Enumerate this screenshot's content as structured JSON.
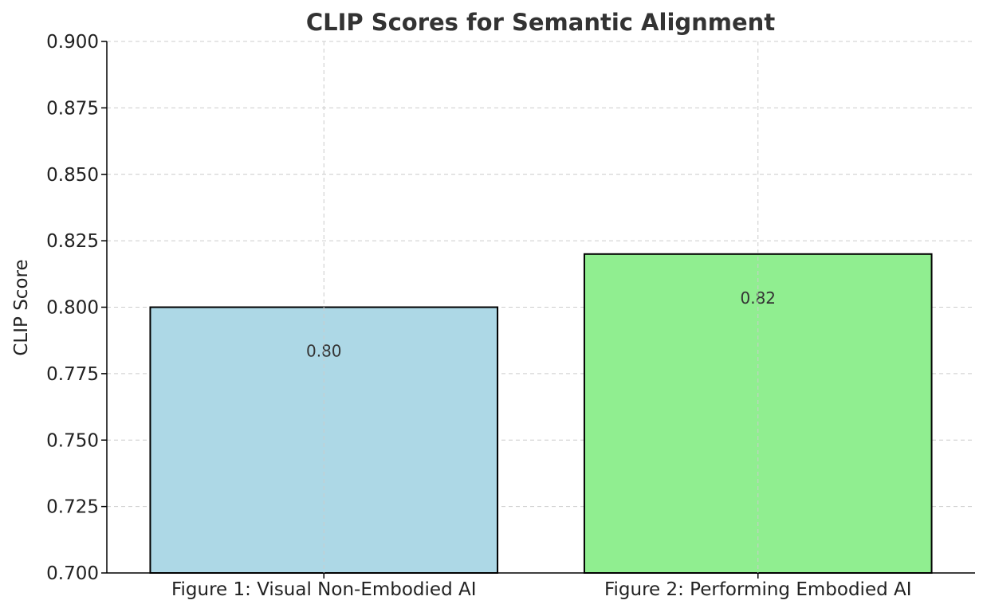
{
  "chart_data": {
    "type": "bar",
    "title": "CLIP Scores for Semantic Alignment",
    "xlabel": "",
    "ylabel": "CLIP Score",
    "categories": [
      "Figure 1: Visual Non-Embodied AI",
      "Figure 2: Performing Embodied AI"
    ],
    "values": [
      0.8,
      0.82
    ],
    "data_labels": [
      "0.80",
      "0.82"
    ],
    "ylim": [
      0.7,
      0.9
    ],
    "yticks": [
      0.7,
      0.725,
      0.75,
      0.775,
      0.8,
      0.825,
      0.85,
      0.875,
      0.9
    ],
    "ytick_labels": [
      "0.700",
      "0.725",
      "0.750",
      "0.775",
      "0.800",
      "0.825",
      "0.850",
      "0.875",
      "0.900"
    ],
    "grid": true,
    "bar_colors": [
      "#add8e6",
      "#90ee90"
    ],
    "edge_color": "#000000"
  }
}
